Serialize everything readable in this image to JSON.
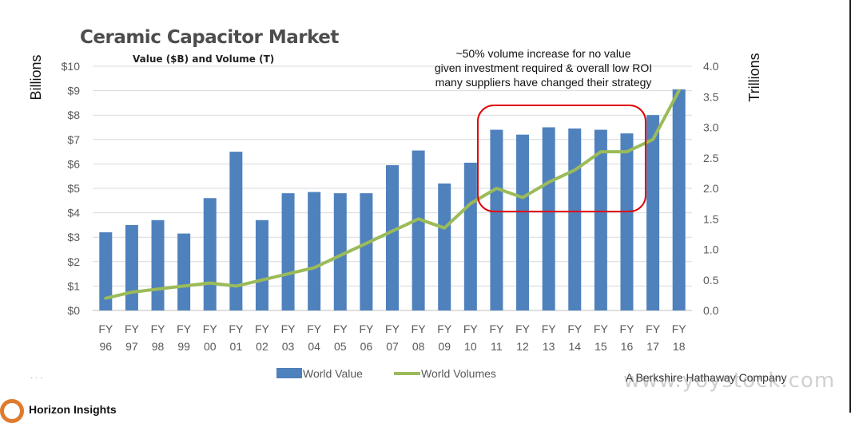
{
  "header": {
    "title": "Ceramic Capacitor Market",
    "subtitle": "Value ($B) and Volume (T)"
  },
  "annotation": {
    "lines": [
      "~50% volume increase for no value",
      "given investment required & overall low ROI",
      "many suppliers have changed their strategy"
    ]
  },
  "footer": {
    "note": "A Berkshire Hathaway Company",
    "watermark": "www.yoystock.com",
    "brand": "Horizon Insights"
  },
  "colors": {
    "bar": "#4f81bd",
    "line": "#9bbb59",
    "highlight": "#e00000",
    "grid": "#d9d9d9",
    "axis_text": "#595959"
  },
  "chart_data": {
    "type": "bar",
    "categories": [
      [
        "FY",
        "96"
      ],
      [
        "FY",
        "97"
      ],
      [
        "FY",
        "98"
      ],
      [
        "FY",
        "99"
      ],
      [
        "FY",
        "00"
      ],
      [
        "FY",
        "01"
      ],
      [
        "FY",
        "02"
      ],
      [
        "FY",
        "03"
      ],
      [
        "FY",
        "04"
      ],
      [
        "FY",
        "05"
      ],
      [
        "FY",
        "06"
      ],
      [
        "FY",
        "07"
      ],
      [
        "FY",
        "08"
      ],
      [
        "FY",
        "09"
      ],
      [
        "FY",
        "10"
      ],
      [
        "FY",
        "11"
      ],
      [
        "FY",
        "12"
      ],
      [
        "FY",
        "13"
      ],
      [
        "FY",
        "14"
      ],
      [
        "FY",
        "15"
      ],
      [
        "FY",
        "16"
      ],
      [
        "FY",
        "17"
      ],
      [
        "FY",
        "18"
      ]
    ],
    "series": [
      {
        "name": "World Value",
        "type": "bar",
        "axis": "left",
        "values": [
          3.2,
          3.5,
          3.7,
          3.15,
          4.6,
          6.5,
          3.7,
          4.8,
          4.85,
          4.8,
          4.8,
          5.95,
          6.55,
          5.2,
          6.05,
          7.4,
          7.2,
          7.5,
          7.45,
          7.4,
          7.25,
          8.0,
          9.05
        ]
      },
      {
        "name": "World Volumes",
        "type": "line",
        "axis": "right",
        "values": [
          0.2,
          0.3,
          0.35,
          0.4,
          0.45,
          0.4,
          0.5,
          0.6,
          0.7,
          0.9,
          1.1,
          1.3,
          1.5,
          1.35,
          1.75,
          2.0,
          1.85,
          2.1,
          2.3,
          2.6,
          2.6,
          2.8,
          3.6
        ]
      }
    ],
    "y_left": {
      "label": "Billions",
      "ylim": [
        0,
        10
      ],
      "ticks": [
        "$0",
        "$1",
        "$2",
        "$3",
        "$4",
        "$5",
        "$6",
        "$7",
        "$8",
        "$9",
        "$10"
      ]
    },
    "y_right": {
      "label": "Trillions",
      "ylim": [
        0,
        4
      ],
      "ticks": [
        "0.0",
        "0.5",
        "1.0",
        "1.5",
        "2.0",
        "2.5",
        "3.0",
        "3.5",
        "4.0"
      ]
    },
    "grid": true,
    "legend_position": "bottom",
    "highlight": {
      "from_category_index": 15,
      "to_category_index": 20,
      "shape": "rounded-rectangle"
    }
  }
}
